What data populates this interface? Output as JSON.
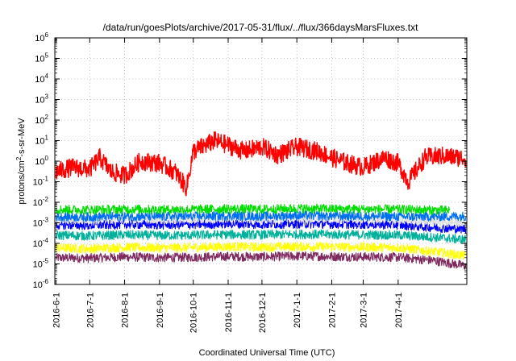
{
  "chart_data": {
    "type": "line",
    "title": "/data/run/goesPlots/archive/2017-05-31/flux/../flux/366daysMarsFluxes.txt",
    "xlabel": "Coordinated Universal Time (UTC)",
    "ylabel": {
      "pre": "protons/cm",
      "sup": "2",
      "post": "-s-sr-MeV"
    },
    "yscale": "log",
    "ylim": [
      1e-06,
      1000000.0
    ],
    "xlim": [
      "2016-05-31",
      "2017-06-01"
    ],
    "grid": true,
    "legend": "none",
    "xticks": [
      {
        "date": "2016-06-01",
        "label": "2016-6-1"
      },
      {
        "date": "2016-07-01",
        "label": "2016-7-1"
      },
      {
        "date": "2016-08-01",
        "label": "2016-8-1"
      },
      {
        "date": "2016-09-01",
        "label": "2016-9-1"
      },
      {
        "date": "2016-10-01",
        "label": "2016-10-1"
      },
      {
        "date": "2016-11-01",
        "label": "2016-11-1"
      },
      {
        "date": "2016-12-01",
        "label": "2016-12-1"
      },
      {
        "date": "2017-01-01",
        "label": "2017-1-1"
      },
      {
        "date": "2017-02-01",
        "label": "2017-2-1"
      },
      {
        "date": "2017-03-01",
        "label": "2017-3-1"
      },
      {
        "date": "2017-04-01",
        "label": "2017-4-1"
      }
    ],
    "yticks": [
      {
        "value": 1e-06,
        "base": "10",
        "exp": "-6"
      },
      {
        "value": 1e-05,
        "base": "10",
        "exp": "-5"
      },
      {
        "value": 0.0001,
        "base": "10",
        "exp": "-4"
      },
      {
        "value": 0.001,
        "base": "10",
        "exp": "-3"
      },
      {
        "value": 0.01,
        "base": "10",
        "exp": "-2"
      },
      {
        "value": 0.1,
        "base": "10",
        "exp": "-1"
      },
      {
        "value": 1.0,
        "base": "10",
        "exp": "0"
      },
      {
        "value": 10.0,
        "base": "10",
        "exp": "1"
      },
      {
        "value": 100.0,
        "base": "10",
        "exp": "2"
      },
      {
        "value": 1000.0,
        "base": "10",
        "exp": "3"
      },
      {
        "value": 10000.0,
        "base": "10",
        "exp": "4"
      },
      {
        "value": 100000.0,
        "base": "10",
        "exp": "5"
      },
      {
        "value": 1000000.0,
        "base": "10",
        "exp": "6"
      }
    ],
    "series": [
      {
        "color": "#7f2a5e",
        "start": "2016-06-01",
        "end": "2017-05-31",
        "points": [
          [
            "2016-06-01",
            2e-05
          ],
          [
            "2016-07-01",
            1.9e-05
          ],
          [
            "2016-08-01",
            2.2e-05
          ],
          [
            "2016-09-01",
            2e-05
          ],
          [
            "2016-10-01",
            2.1e-05
          ],
          [
            "2016-11-01",
            2.3e-05
          ],
          [
            "2016-12-01",
            2.2e-05
          ],
          [
            "2017-01-01",
            2.4e-05
          ],
          [
            "2017-02-01",
            2.3e-05
          ],
          [
            "2017-03-01",
            2.2e-05
          ],
          [
            "2017-04-01",
            2.1e-05
          ],
          [
            "2017-05-01",
            1.5e-05
          ],
          [
            "2017-05-31",
            8e-06
          ]
        ]
      },
      {
        "color": "#ffff00",
        "start": "2016-06-01",
        "end": "2017-05-31",
        "points": [
          [
            "2016-06-01",
            6e-05
          ],
          [
            "2016-07-01",
            5.5e-05
          ],
          [
            "2016-08-01",
            6.5e-05
          ],
          [
            "2016-09-01",
            6e-05
          ],
          [
            "2016-10-01",
            6.3e-05
          ],
          [
            "2016-11-01",
            7e-05
          ],
          [
            "2016-12-01",
            6.5e-05
          ],
          [
            "2017-01-01",
            7e-05
          ],
          [
            "2017-02-01",
            6.8e-05
          ],
          [
            "2017-03-01",
            6.5e-05
          ],
          [
            "2017-04-01",
            6.2e-05
          ],
          [
            "2017-05-01",
            4e-05
          ],
          [
            "2017-05-31",
            2.5e-05
          ]
        ]
      },
      {
        "color": "#00b09a",
        "start": "2016-06-01",
        "end": "2017-05-31",
        "points": [
          [
            "2016-06-01",
            0.00025
          ],
          [
            "2016-07-01",
            0.00023
          ],
          [
            "2016-08-01",
            0.00026
          ],
          [
            "2016-09-01",
            0.00024
          ],
          [
            "2016-10-01",
            0.00025
          ],
          [
            "2016-11-01",
            0.00027
          ],
          [
            "2016-12-01",
            0.00026
          ],
          [
            "2017-01-01",
            0.00028
          ],
          [
            "2017-02-01",
            0.00027
          ],
          [
            "2017-03-01",
            0.00026
          ],
          [
            "2017-04-01",
            0.00025
          ],
          [
            "2017-05-01",
            0.0002
          ],
          [
            "2017-05-31",
            0.00015
          ]
        ]
      },
      {
        "color": "#0000ff",
        "start": "2016-06-01",
        "end": "2017-05-31",
        "points": [
          [
            "2016-06-01",
            0.0008
          ],
          [
            "2016-07-01",
            0.00075
          ],
          [
            "2016-08-01",
            0.00085
          ],
          [
            "2016-09-01",
            0.0008
          ],
          [
            "2016-10-01",
            0.00082
          ],
          [
            "2016-11-01",
            0.0009
          ],
          [
            "2016-12-01",
            0.00085
          ],
          [
            "2017-01-01",
            0.0009
          ],
          [
            "2017-02-01",
            0.00088
          ],
          [
            "2017-03-01",
            0.00085
          ],
          [
            "2017-04-01",
            0.0008
          ],
          [
            "2017-05-01",
            0.0006
          ],
          [
            "2017-05-31",
            0.0005
          ]
        ]
      },
      {
        "color": "#e0e0e0",
        "start": "2016-06-01",
        "end": "2017-05-31",
        "points": [
          [
            "2016-06-01",
            0.0015
          ],
          [
            "2016-07-01",
            0.0014
          ],
          [
            "2016-08-01",
            0.0016
          ],
          [
            "2016-09-01",
            0.0015
          ],
          [
            "2016-10-01",
            0.00155
          ],
          [
            "2016-11-01",
            0.0017
          ],
          [
            "2016-12-01",
            0.0016
          ],
          [
            "2017-01-01",
            0.0017
          ],
          [
            "2017-02-01",
            0.00165
          ],
          [
            "2017-03-01",
            0.0016
          ],
          [
            "2017-04-01",
            0.0015
          ],
          [
            "2017-05-01",
            0.0012
          ],
          [
            "2017-05-31",
            0.001
          ]
        ]
      },
      {
        "color": "#0070f0",
        "start": "2016-06-01",
        "end": "2017-05-31",
        "points": [
          [
            "2016-06-01",
            0.002
          ],
          [
            "2016-07-01",
            0.0019
          ],
          [
            "2016-08-01",
            0.0021
          ],
          [
            "2016-09-01",
            0.002
          ],
          [
            "2016-10-01",
            0.00205
          ],
          [
            "2016-11-01",
            0.0022
          ],
          [
            "2016-12-01",
            0.0021
          ],
          [
            "2017-01-01",
            0.0023
          ],
          [
            "2017-02-01",
            0.0022
          ],
          [
            "2017-03-01",
            0.0021
          ],
          [
            "2017-04-01",
            0.002
          ],
          [
            "2017-05-01",
            0.002
          ],
          [
            "2017-05-31",
            0.0021
          ]
        ]
      },
      {
        "color": "#00dd00",
        "start": "2016-06-01",
        "end": "2017-05-17",
        "points": [
          [
            "2016-06-01",
            0.0045
          ],
          [
            "2016-07-01",
            0.0043
          ],
          [
            "2016-08-01",
            0.0046
          ],
          [
            "2016-09-01",
            0.0044
          ],
          [
            "2016-10-01",
            0.0045
          ],
          [
            "2016-11-01",
            0.0048
          ],
          [
            "2016-12-01",
            0.0046
          ],
          [
            "2017-01-01",
            0.005
          ],
          [
            "2017-02-01",
            0.0048
          ],
          [
            "2017-03-01",
            0.0046
          ],
          [
            "2017-04-01",
            0.0045
          ],
          [
            "2017-05-17",
            0.004
          ]
        ]
      },
      {
        "color": "#ff0000",
        "start": "2016-06-01",
        "end": "2017-05-31",
        "points": [
          [
            "2016-06-01",
            0.3
          ],
          [
            "2016-06-15",
            0.5
          ],
          [
            "2016-07-01",
            0.4
          ],
          [
            "2016-07-10",
            1.5
          ],
          [
            "2016-07-20",
            0.3
          ],
          [
            "2016-08-01",
            0.2
          ],
          [
            "2016-08-15",
            1.0
          ],
          [
            "2016-09-01",
            0.8
          ],
          [
            "2016-09-15",
            0.3
          ],
          [
            "2016-09-25",
            0.05
          ],
          [
            "2016-10-01",
            3
          ],
          [
            "2016-10-20",
            10
          ],
          [
            "2016-11-01",
            6
          ],
          [
            "2016-11-15",
            3
          ],
          [
            "2016-12-01",
            5
          ],
          [
            "2016-12-15",
            2
          ],
          [
            "2017-01-01",
            5
          ],
          [
            "2017-01-20",
            3
          ],
          [
            "2017-02-01",
            1.5
          ],
          [
            "2017-02-15",
            0.8
          ],
          [
            "2017-03-01",
            0.5
          ],
          [
            "2017-03-20",
            1.5
          ],
          [
            "2017-04-01",
            0.8
          ],
          [
            "2017-04-10",
            0.1
          ],
          [
            "2017-04-25",
            1.5
          ],
          [
            "2017-05-10",
            1.8
          ],
          [
            "2017-05-31",
            1.4
          ]
        ]
      }
    ]
  }
}
